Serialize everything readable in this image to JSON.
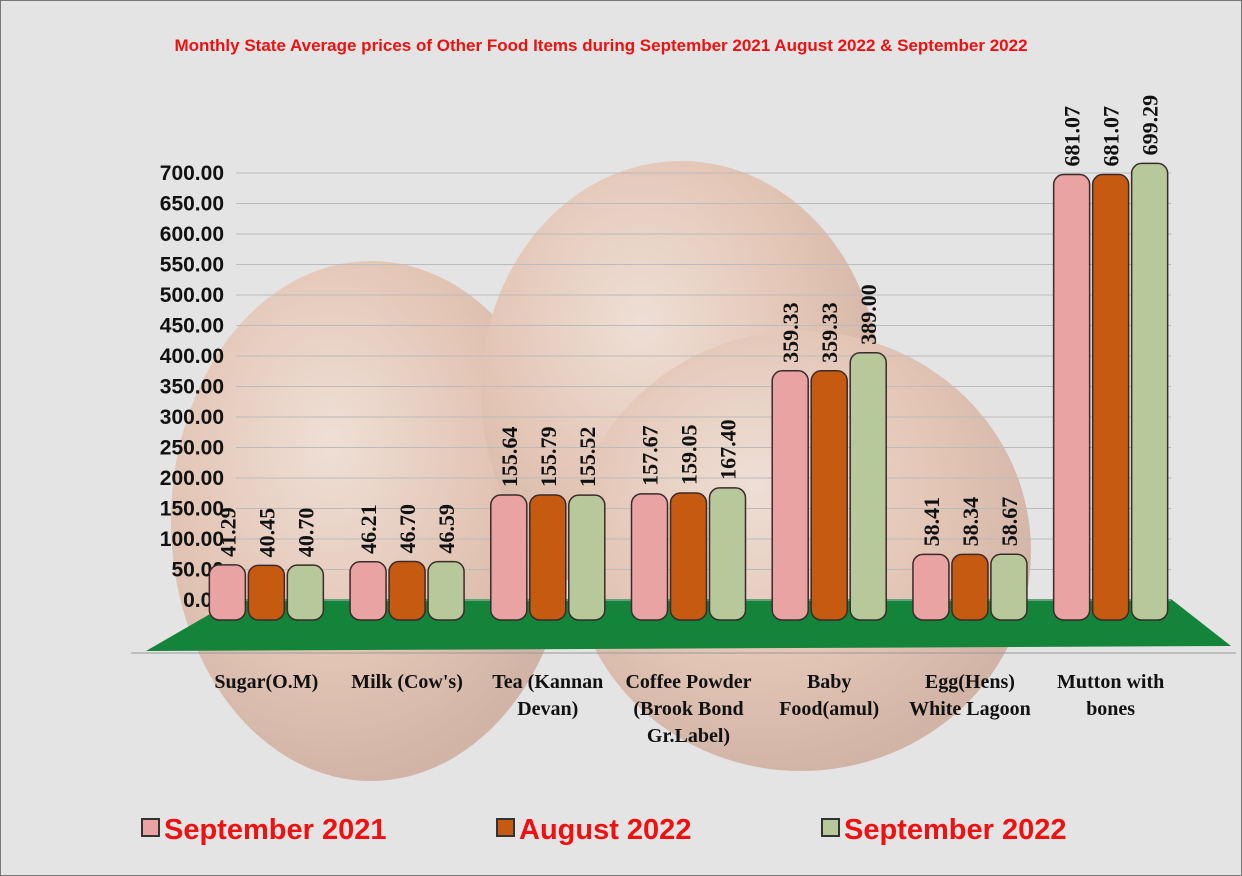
{
  "chart_data": {
    "type": "bar",
    "title": "Monthly State Average prices of Other Food Items during  September  2021  August 2022 &  September 2022",
    "categories": [
      "Sugar(O.M)",
      "Milk (Cow's)",
      "Tea (Kannan Devan)",
      "Coffee Powder (Brook Bond Gr.Label)",
      "Baby Food(amul)",
      "Egg(Hens) White Lagoon",
      "Mutton with bones"
    ],
    "series": [
      {
        "name": "September 2021",
        "color": "#e9a3a3",
        "values": [
          41.29,
          46.21,
          155.64,
          157.67,
          359.33,
          58.41,
          681.07
        ],
        "value_labels": [
          "41.29",
          "46.21",
          "155.64",
          "157.67",
          "359.33",
          "58.41",
          "681.07"
        ]
      },
      {
        "name": "August 2022",
        "color": "#c65a10",
        "values": [
          40.45,
          46.7,
          155.79,
          159.05,
          359.33,
          58.34,
          681.07
        ],
        "value_labels": [
          "40.45",
          "46.70",
          "155.79",
          "159.05",
          "359.33",
          "58.34",
          "681.07"
        ]
      },
      {
        "name": "September 2022",
        "color": "#b7c99b",
        "values": [
          40.7,
          46.59,
          155.52,
          167.4,
          389.0,
          58.67,
          699.29
        ],
        "value_labels": [
          "40.70",
          "46.59",
          "155.52",
          "167.40",
          "389.00",
          "58.67",
          "699.29"
        ]
      }
    ],
    "ylim": [
      0,
      700
    ],
    "yticks": [
      {
        "value": 0,
        "label": "0.00"
      },
      {
        "value": 50,
        "label": "50.00"
      },
      {
        "value": 100,
        "label": "100.00"
      },
      {
        "value": 150,
        "label": "150.00"
      },
      {
        "value": 200,
        "label": "200.00"
      },
      {
        "value": 250,
        "label": "250.00"
      },
      {
        "value": 300,
        "label": "300.00"
      },
      {
        "value": 350,
        "label": "350.00"
      },
      {
        "value": 400,
        "label": "400.00"
      },
      {
        "value": 450,
        "label": "450.00"
      },
      {
        "value": 500,
        "label": "500.00"
      },
      {
        "value": 550,
        "label": "550.00"
      },
      {
        "value": 600,
        "label": "600.00"
      },
      {
        "value": 650,
        "label": "650.00"
      },
      {
        "value": 700,
        "label": "700.00"
      }
    ],
    "grid": true
  }
}
